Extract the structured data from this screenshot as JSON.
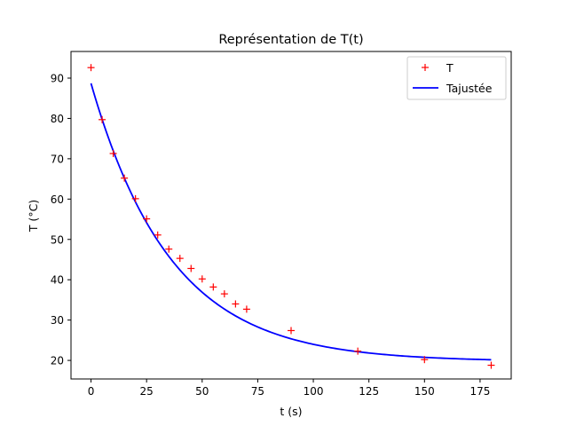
{
  "chart_data": {
    "type": "line",
    "title": "Représentation de T(t)",
    "xlabel": "t (s)",
    "ylabel": "T (°C)",
    "xlim": [
      -9,
      189
    ],
    "ylim": [
      15.4,
      96.6
    ],
    "xticks": [
      0,
      25,
      50,
      75,
      100,
      125,
      150,
      175
    ],
    "yticks": [
      20,
      30,
      40,
      50,
      60,
      70,
      80,
      90
    ],
    "grid": false,
    "legend_position": "top-right",
    "series": [
      {
        "name": "T",
        "kind": "scatter",
        "marker": "+",
        "color": "#ff0000",
        "x": [
          0,
          5,
          10,
          15,
          20,
          25,
          30,
          35,
          40,
          45,
          50,
          55,
          60,
          65,
          70,
          90,
          120,
          150,
          180
        ],
        "y": [
          92.6,
          79.7,
          71.3,
          65.2,
          60.1,
          55.1,
          51.1,
          47.6,
          45.3,
          42.8,
          40.2,
          38.2,
          36.5,
          34.0,
          32.7,
          27.4,
          22.3,
          20.2,
          18.8
        ]
      },
      {
        "name": "Tajustée",
        "kind": "line",
        "color": "#0000ff",
        "model": {
          "form": "exponential_decay",
          "T_inf": 19.7,
          "A": 69.0,
          "tau": 36.0
        },
        "x_range": [
          0,
          180
        ]
      }
    ]
  }
}
